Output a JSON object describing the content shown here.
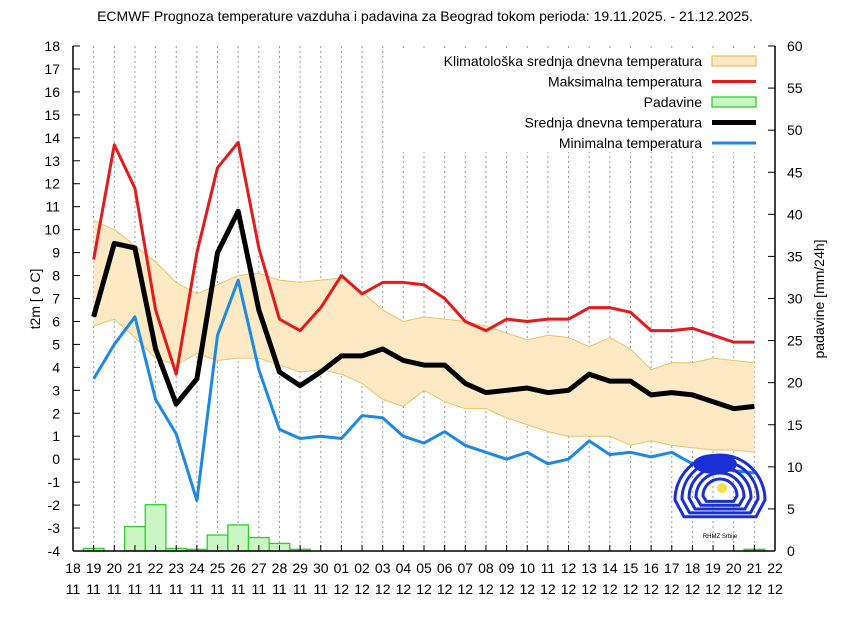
{
  "chart_data": {
    "type": "line",
    "title": "ECMWF Prognoza temperature vazduha i padavina za Beograd tokom perioda: 19.11.2025. - 21.12.2025.",
    "ylabel": "t2m [ o C]",
    "y2label": "padavine [mm/24h]",
    "ylim": [
      -4,
      18
    ],
    "y2lim": [
      0,
      60
    ],
    "yticks": [
      -4,
      -3,
      -2,
      -1,
      0,
      1,
      2,
      3,
      4,
      5,
      6,
      7,
      8,
      9,
      10,
      11,
      12,
      13,
      14,
      15,
      16,
      17,
      18
    ],
    "y2ticks": [
      0,
      5,
      10,
      15,
      20,
      25,
      30,
      35,
      40,
      45,
      50,
      55,
      60
    ],
    "grid": "vertical dotted per day",
    "legend_placement": "top-right",
    "x_tick_days": [
      "18",
      "19",
      "20",
      "21",
      "22",
      "23",
      "24",
      "25",
      "26",
      "27",
      "28",
      "29",
      "30",
      "01",
      "02",
      "03",
      "04",
      "05",
      "06",
      "07",
      "08",
      "09",
      "10",
      "11",
      "12",
      "13",
      "14",
      "15",
      "16",
      "17",
      "18",
      "19",
      "20",
      "21",
      "22"
    ],
    "x_tick_months": [
      "11",
      "11",
      "11",
      "11",
      "11",
      "11",
      "11",
      "11",
      "11",
      "11",
      "11",
      "11",
      "11",
      "12",
      "12",
      "12",
      "12",
      "12",
      "12",
      "12",
      "12",
      "12",
      "12",
      "12",
      "12",
      "12",
      "12",
      "12",
      "12",
      "12",
      "12",
      "12",
      "12",
      "12",
      "12"
    ],
    "dates": [
      "19.11",
      "20.11",
      "21.11",
      "22.11",
      "23.11",
      "24.11",
      "25.11",
      "26.11",
      "27.11",
      "28.11",
      "29.11",
      "30.11",
      "01.12",
      "02.12",
      "03.12",
      "04.12",
      "05.12",
      "06.12",
      "07.12",
      "08.12",
      "09.12",
      "10.12",
      "11.12",
      "12.12",
      "13.12",
      "14.12",
      "15.12",
      "16.12",
      "17.12",
      "18.12",
      "19.12",
      "20.12",
      "21.12"
    ],
    "climatology": {
      "name": "Klimatološka srednja dnevna temperatura",
      "color": "#fde9c4",
      "edge_color": "#e8c46a",
      "upper": [
        10.4,
        10.0,
        9.3,
        8.6,
        7.7,
        7.2,
        7.6,
        8.0,
        8.1,
        7.8,
        7.7,
        7.8,
        7.9,
        7.3,
        6.5,
        6.0,
        6.2,
        6.1,
        6.0,
        5.8,
        5.5,
        5.2,
        5.4,
        5.3,
        4.9,
        5.3,
        4.8,
        3.9,
        4.2,
        4.2,
        4.4,
        4.3,
        4.2
      ],
      "lower": [
        5.8,
        6.1,
        5.3,
        4.4,
        4.1,
        4.6,
        4.3,
        4.4,
        4.4,
        4.1,
        3.8,
        3.9,
        3.7,
        3.3,
        2.6,
        2.3,
        3.0,
        2.5,
        2.2,
        2.2,
        1.8,
        1.5,
        1.2,
        1.0,
        1.0,
        1.0,
        0.6,
        0.8,
        0.6,
        0.5,
        0.4,
        0.4,
        0.3
      ]
    },
    "series": [
      {
        "name": "Maksimalna temperatura",
        "color": "#e41a1c",
        "values": [
          8.7,
          13.7,
          11.8,
          6.5,
          3.7,
          9.0,
          12.7,
          13.8,
          9.2,
          6.1,
          5.6,
          6.6,
          8.0,
          7.2,
          7.7,
          7.7,
          7.6,
          7.0,
          6.0,
          5.6,
          6.1,
          6.0,
          6.1,
          6.1,
          6.6,
          6.6,
          6.4,
          5.6,
          5.6,
          5.7,
          5.4,
          5.1,
          5.1
        ]
      },
      {
        "name": "Srednja dnevna temperatura",
        "color": "#000000",
        "values": [
          6.2,
          9.4,
          9.2,
          4.8,
          2.4,
          3.5,
          9.0,
          10.8,
          6.5,
          3.8,
          3.2,
          3.8,
          4.5,
          4.5,
          4.8,
          4.3,
          4.1,
          4.1,
          3.3,
          2.9,
          3.0,
          3.1,
          2.9,
          3.0,
          3.7,
          3.4,
          3.4,
          2.8,
          2.9,
          2.8,
          2.5,
          2.2,
          2.3
        ]
      },
      {
        "name": "Minimalna temperatura",
        "color": "#1e88e5",
        "values": [
          3.5,
          5.0,
          6.2,
          2.6,
          1.1,
          -1.8,
          5.4,
          7.8,
          3.9,
          1.3,
          0.9,
          1.0,
          0.9,
          1.9,
          1.8,
          1.0,
          0.7,
          1.2,
          0.6,
          0.3,
          0.0,
          0.3,
          -0.2,
          0.0,
          0.8,
          0.2,
          0.3,
          0.1,
          0.3,
          -0.2,
          -0.4,
          -0.5,
          -0.6
        ]
      }
    ],
    "precipitation": {
      "name": "Padavine",
      "color": "#ccf5c4",
      "edge_color": "#33cc33",
      "values_mm": [
        0.3,
        0,
        2.9,
        5.5,
        0.3,
        0.2,
        1.9,
        3.1,
        1.6,
        0.9,
        0.2,
        0,
        0,
        0,
        0,
        0,
        0,
        0,
        0,
        0,
        0,
        0,
        0,
        0,
        0,
        0,
        0,
        0,
        0,
        0,
        0,
        0,
        0.2
      ]
    },
    "logo_text": "RHMZ Srbije"
  }
}
